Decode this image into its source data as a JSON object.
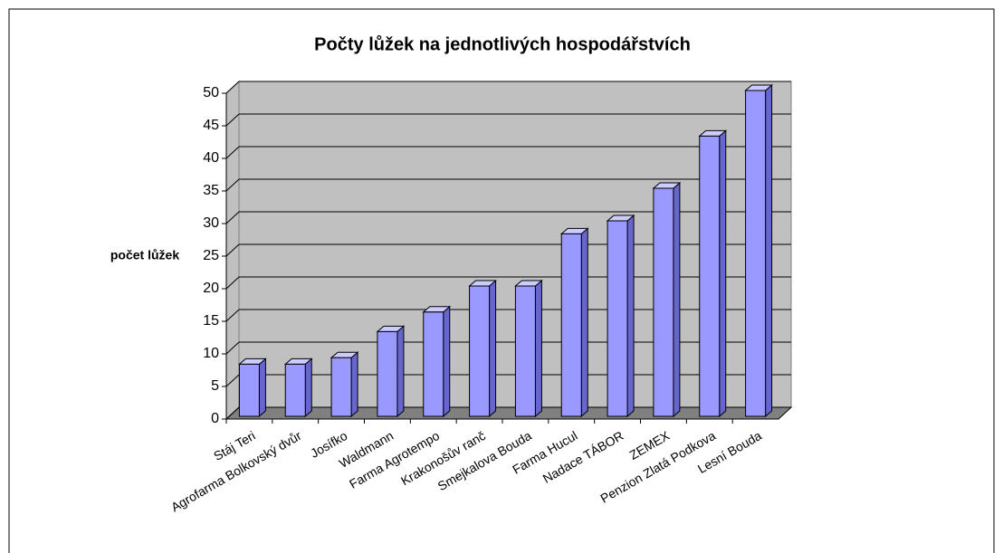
{
  "chart_data": {
    "type": "bar3d",
    "title": "Počty lůžek na jednotlivých hospodářstvích",
    "y_label": "počet lůžek",
    "categories": [
      "Stáj Teri",
      "Agrofarma Bolkovský dvůr",
      "Josífko",
      "Waldmann",
      "Farma Agrotempo",
      "Krakonošův ranč",
      "Smejkalova Bouda",
      "Farma Hucul",
      "Nadace TÁBOR",
      "ZEMEX",
      "Penzion Zlatá Podkova",
      "Lesní Bouda"
    ],
    "values": [
      8,
      8,
      9,
      13,
      16,
      20,
      20,
      28,
      30,
      35,
      43,
      50
    ],
    "color": "#9999ff",
    "ylim": [
      0,
      50
    ],
    "yticks": [
      0,
      5,
      10,
      15,
      20,
      25,
      30,
      35,
      40,
      45,
      50
    ],
    "grid": true
  }
}
